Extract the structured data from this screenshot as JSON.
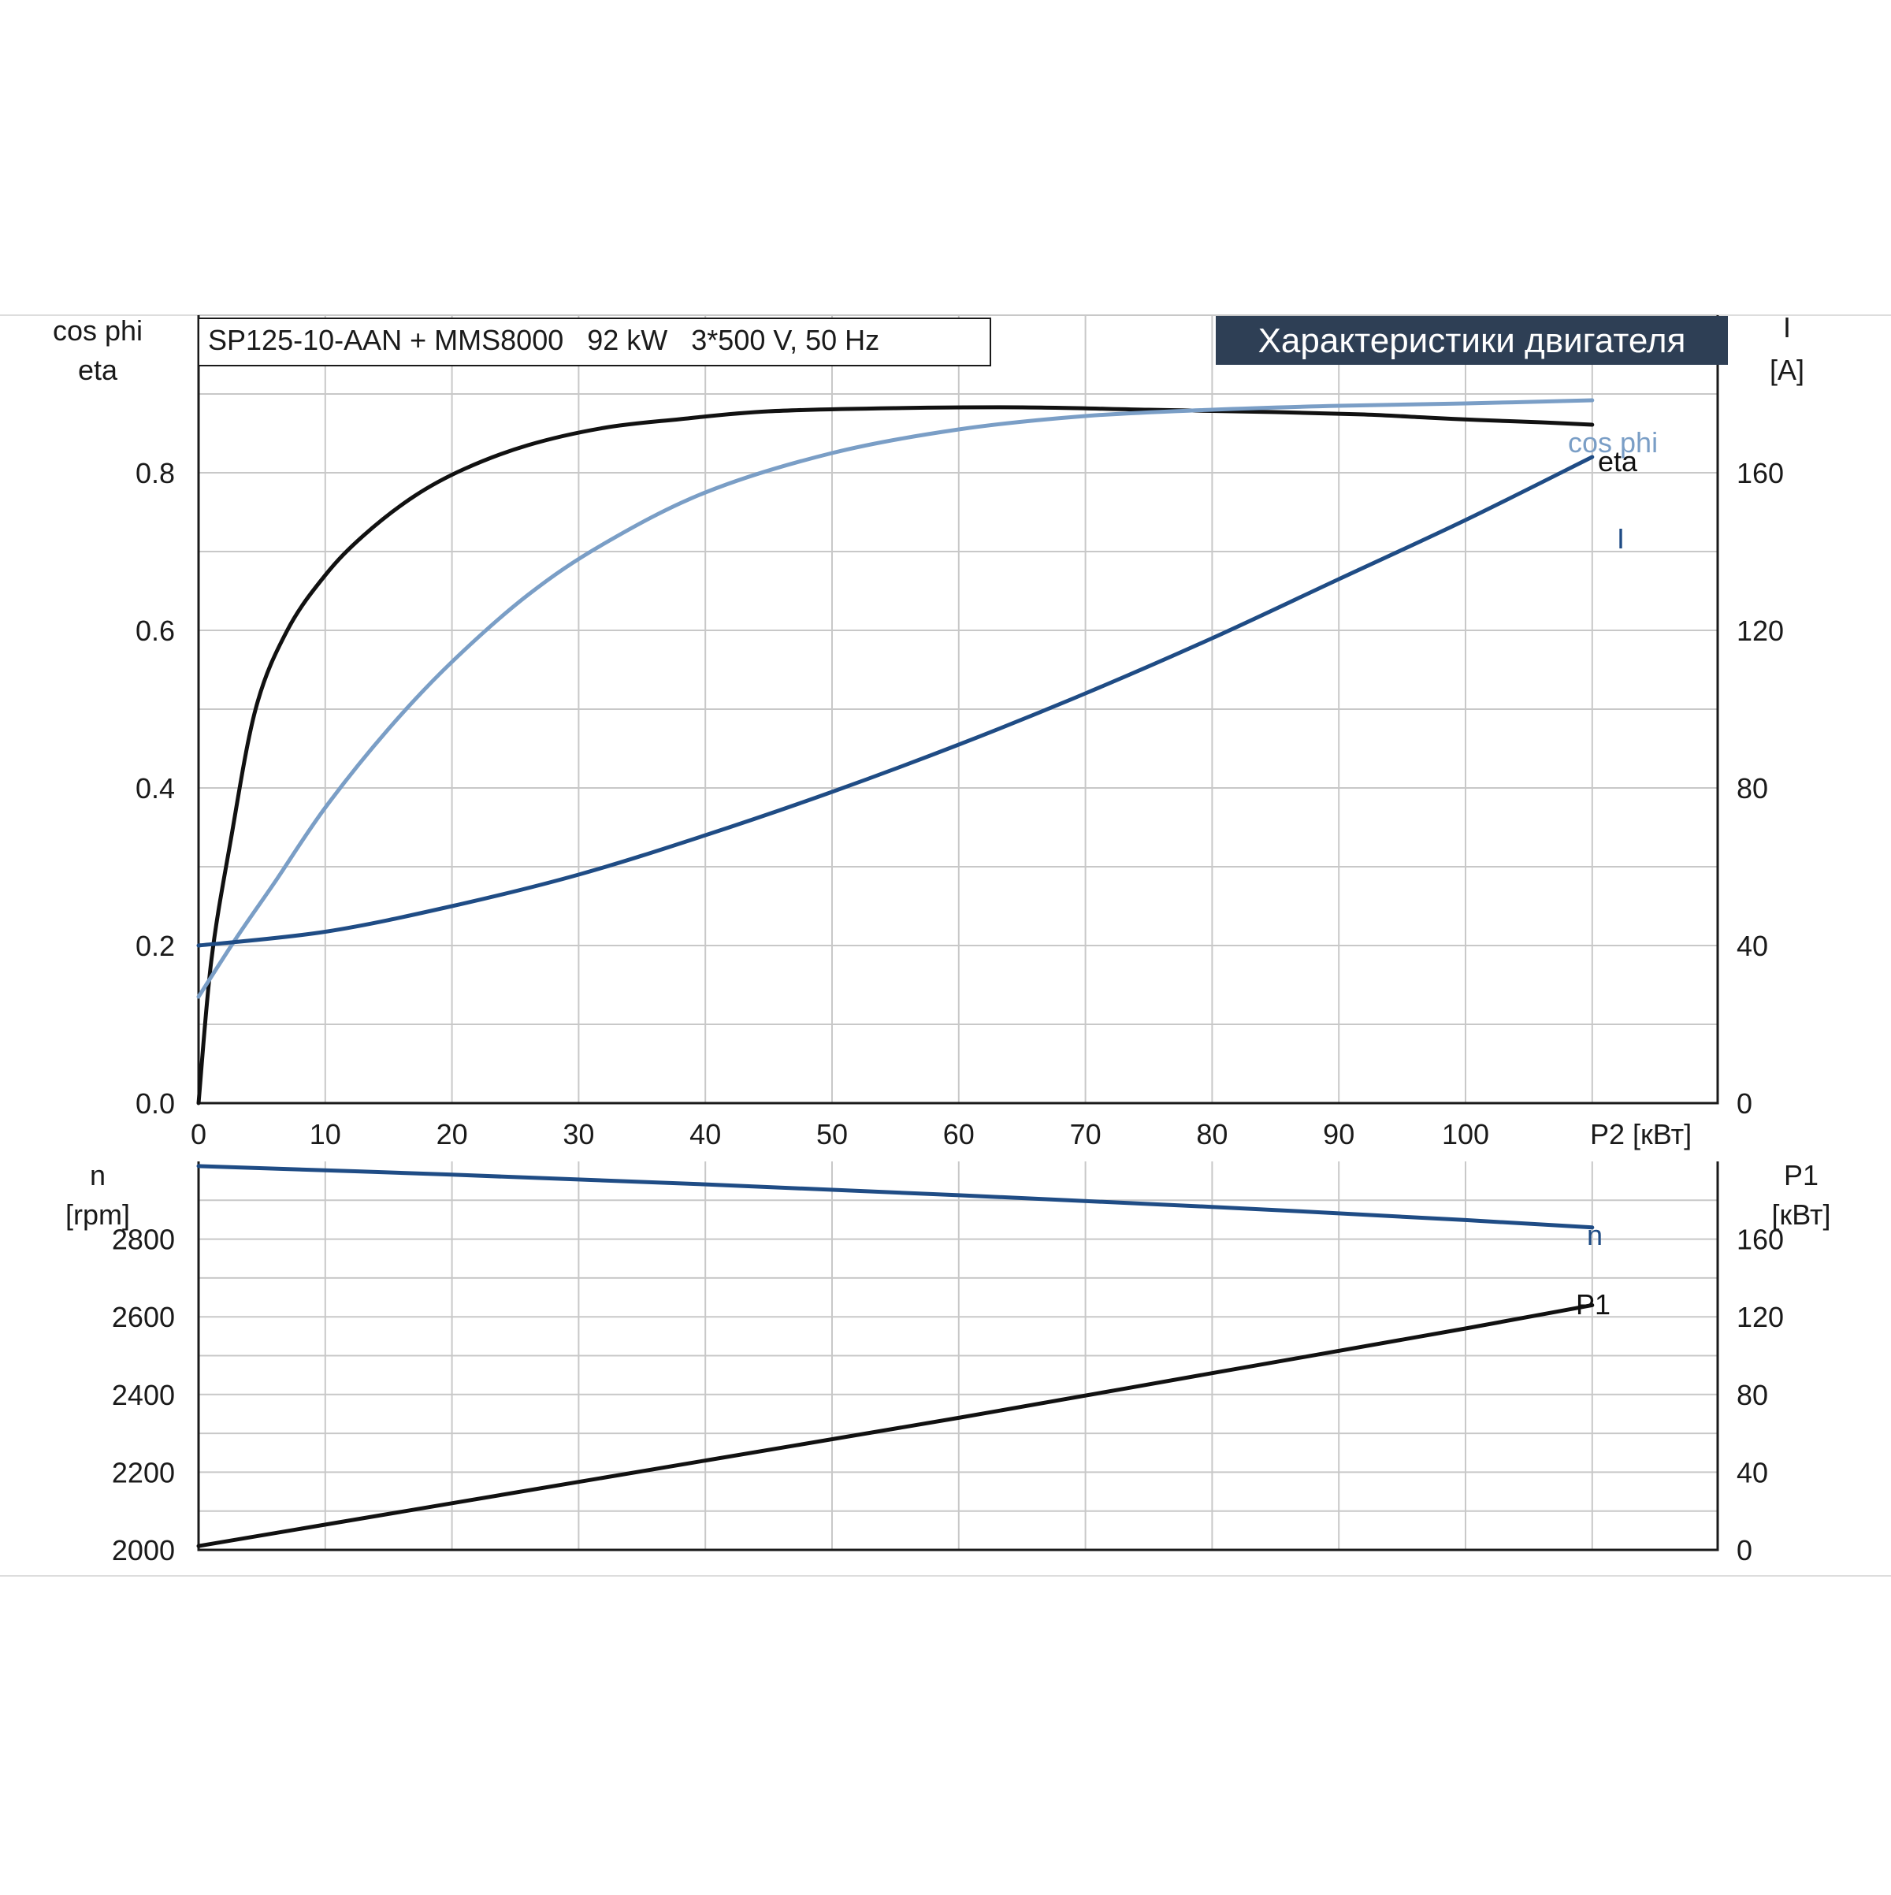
{
  "header": {
    "model": "SP125-10-AAN + MMS8000   92 kW   3*500 V, 50 Hz",
    "title": "Характеристики двигателя"
  },
  "colors": {
    "black": "#111111",
    "dark_blue": "#1f4c85",
    "light_blue": "#7a9ec6",
    "header_bg": "#2e3f55",
    "grid": "#c8c8c8"
  },
  "chart_data": [
    {
      "type": "line",
      "axes": {
        "x": {
          "label": "P2 [кВт]",
          "range": [
            0,
            120
          ],
          "ticks": [
            "0",
            "10",
            "20",
            "30",
            "40",
            "50",
            "60",
            "70",
            "80",
            "90",
            "100"
          ]
        },
        "y_left": {
          "label_line1": "cos phi",
          "label_line2": "eta",
          "range": [
            0,
            1.0
          ],
          "ticks": [
            "0.0",
            "0.2",
            "0.4",
            "0.6",
            "0.8"
          ]
        },
        "y_right": {
          "label_line1": "I",
          "label_line2": "[A]",
          "range": [
            0,
            200
          ],
          "ticks": [
            "0",
            "40",
            "80",
            "120",
            "160"
          ]
        }
      },
      "grid": true,
      "series": [
        {
          "name": "eta",
          "axis": "left",
          "color": "black",
          "x": [
            0,
            1,
            2.5,
            4.5,
            7,
            10,
            13,
            17,
            21,
            26,
            32,
            38,
            45,
            55,
            65,
            75,
            85,
            92,
            97,
            101,
            106,
            110
          ],
          "y": [
            0,
            0.18,
            0.33,
            0.5,
            0.6,
            0.67,
            0.72,
            0.77,
            0.805,
            0.835,
            0.857,
            0.868,
            0.878,
            0.882,
            0.883,
            0.88,
            0.877,
            0.874,
            0.87,
            0.867,
            0.864,
            0.861
          ]
        },
        {
          "name": "cos phi",
          "axis": "left",
          "color": "light_blue",
          "x": [
            0,
            3,
            6,
            10,
            15,
            20,
            26,
            32,
            40,
            50,
            60,
            70,
            80,
            90,
            100,
            110
          ],
          "y": [
            0.135,
            0.21,
            0.28,
            0.375,
            0.475,
            0.56,
            0.645,
            0.71,
            0.775,
            0.825,
            0.855,
            0.872,
            0.88,
            0.885,
            0.888,
            0.892
          ]
        },
        {
          "name": "I",
          "axis": "right",
          "color": "dark_blue",
          "x": [
            0,
            10,
            20,
            30,
            40,
            50,
            60,
            70,
            80,
            90,
            100,
            110
          ],
          "y": [
            40,
            43.5,
            50,
            58,
            68,
            79,
            91,
            104,
            118,
            133,
            148,
            164
          ]
        }
      ]
    },
    {
      "type": "line",
      "axes": {
        "x": {
          "range": [
            0,
            120
          ]
        },
        "y_left": {
          "label_line1": "n",
          "label_line2": "[rpm]",
          "range": [
            2000,
            3000
          ],
          "ticks": [
            "2000",
            "2200",
            "2400",
            "2600",
            "2800"
          ]
        },
        "y_right": {
          "label_line1": "P1",
          "label_line2": "[кВт]",
          "range": [
            0,
            200
          ],
          "ticks": [
            "0",
            "40",
            "80",
            "120",
            "160"
          ]
        }
      },
      "grid": true,
      "series": [
        {
          "name": "n",
          "axis": "left",
          "color": "dark_blue",
          "x": [
            0,
            20,
            40,
            60,
            80,
            100,
            110
          ],
          "y": [
            2988,
            2966,
            2941,
            2913,
            2883,
            2849,
            2830
          ]
        },
        {
          "name": "P1",
          "axis": "right",
          "color": "black",
          "x": [
            0,
            20,
            40,
            60,
            80,
            100,
            110
          ],
          "y": [
            2,
            24,
            46,
            68,
            91,
            114,
            126
          ]
        }
      ]
    }
  ]
}
